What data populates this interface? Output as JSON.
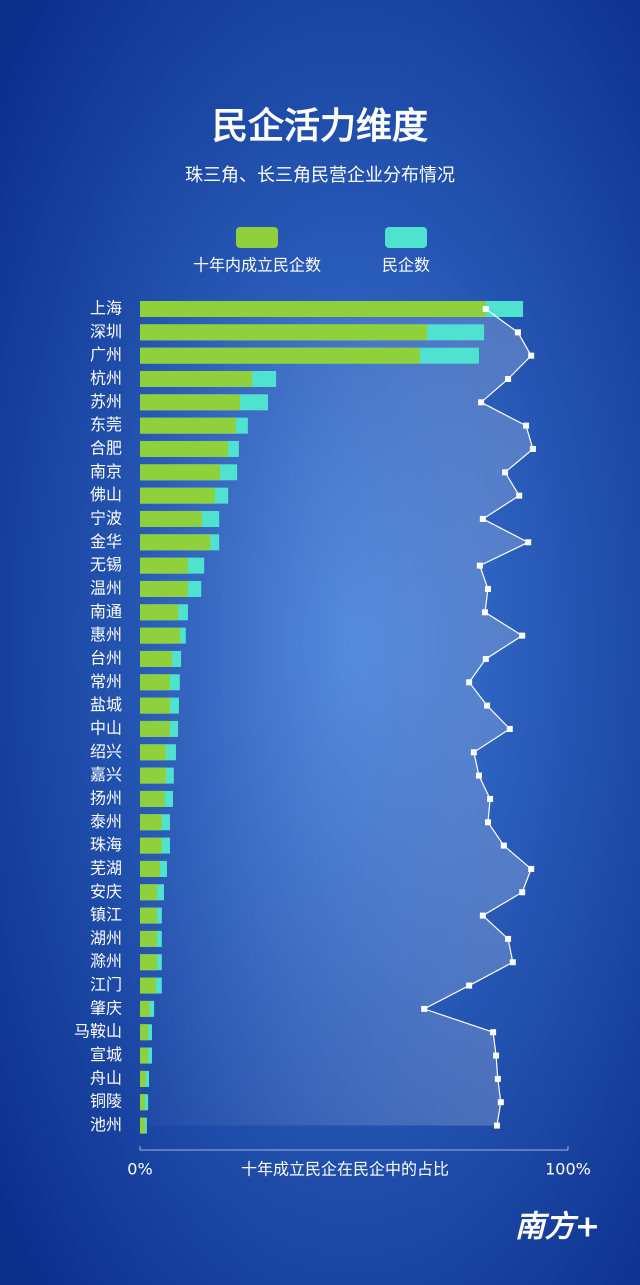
{
  "chart_data": {
    "type": "bar-line",
    "title": "民企活力维度",
    "subtitle": "珠三角、长三角民营企业分布情况",
    "xlabel": "十年成立民企在民企中的占比",
    "categories": [
      "上海",
      "深圳",
      "广州",
      "杭州",
      "苏州",
      "东莞",
      "合肥",
      "南京",
      "佛山",
      "宁波",
      "金华",
      "无锡",
      "温州",
      "南通",
      "惠州",
      "台州",
      "常州",
      "盐城",
      "中山",
      "绍兴",
      "嘉兴",
      "扬州",
      "泰州",
      "珠海",
      "芜湖",
      "安庆",
      "镇江",
      "湖州",
      "滁州",
      "江门",
      "肇庆",
      "马鞍山",
      "宣城",
      "舟山",
      "铜陵",
      "池州"
    ],
    "series": [
      {
        "name": "十年内成立民企数",
        "color": "#8ed13c",
        "values": [
          80.8,
          67.1,
          65.4,
          26.2,
          23.4,
          22.4,
          20.6,
          18.7,
          17.5,
          14.5,
          16.4,
          11.2,
          11.2,
          8.9,
          9.3,
          7.5,
          7.0,
          7.0,
          7.0,
          6.1,
          6.1,
          5.8,
          5.1,
          5.1,
          4.7,
          4.0,
          4.0,
          4.0,
          4.0,
          3.7,
          2.3,
          1.9,
          1.9,
          1.4,
          1.2,
          1.2
        ]
      },
      {
        "name": "民企数",
        "color": "#4fe3cf",
        "values": [
          89.5,
          80.4,
          79.2,
          31.8,
          29.9,
          25.2,
          23.1,
          22.7,
          20.6,
          18.5,
          18.5,
          15.0,
          14.3,
          11.2,
          10.7,
          9.6,
          9.3,
          9.1,
          8.9,
          8.4,
          7.9,
          7.7,
          7.0,
          7.0,
          6.3,
          5.6,
          5.1,
          5.1,
          5.1,
          5.1,
          3.3,
          2.8,
          2.8,
          2.1,
          1.9,
          1.6
        ]
      },
      {
        "color": "#ffffff",
        "values": [
          80.8,
          88.3,
          91.4,
          86.0,
          79.7,
          90.2,
          91.8,
          85.3,
          88.6,
          80.1,
          90.7,
          79.4,
          81.3,
          80.6,
          89.3,
          80.8,
          76.9,
          81.1,
          86.4,
          78.0,
          79.2,
          81.8,
          81.3,
          85.0,
          91.4,
          89.3,
          80.1,
          86.0,
          87.1,
          76.9,
          66.4,
          82.5,
          83.2,
          83.6,
          84.3,
          83.4
        ]
      }
    ],
    "xlim": [
      0,
      100
    ],
    "xticks": [
      {
        "value": 0,
        "label": "0%"
      },
      {
        "value": 100,
        "label": "100%"
      }
    ],
    "logo": "南方+"
  }
}
